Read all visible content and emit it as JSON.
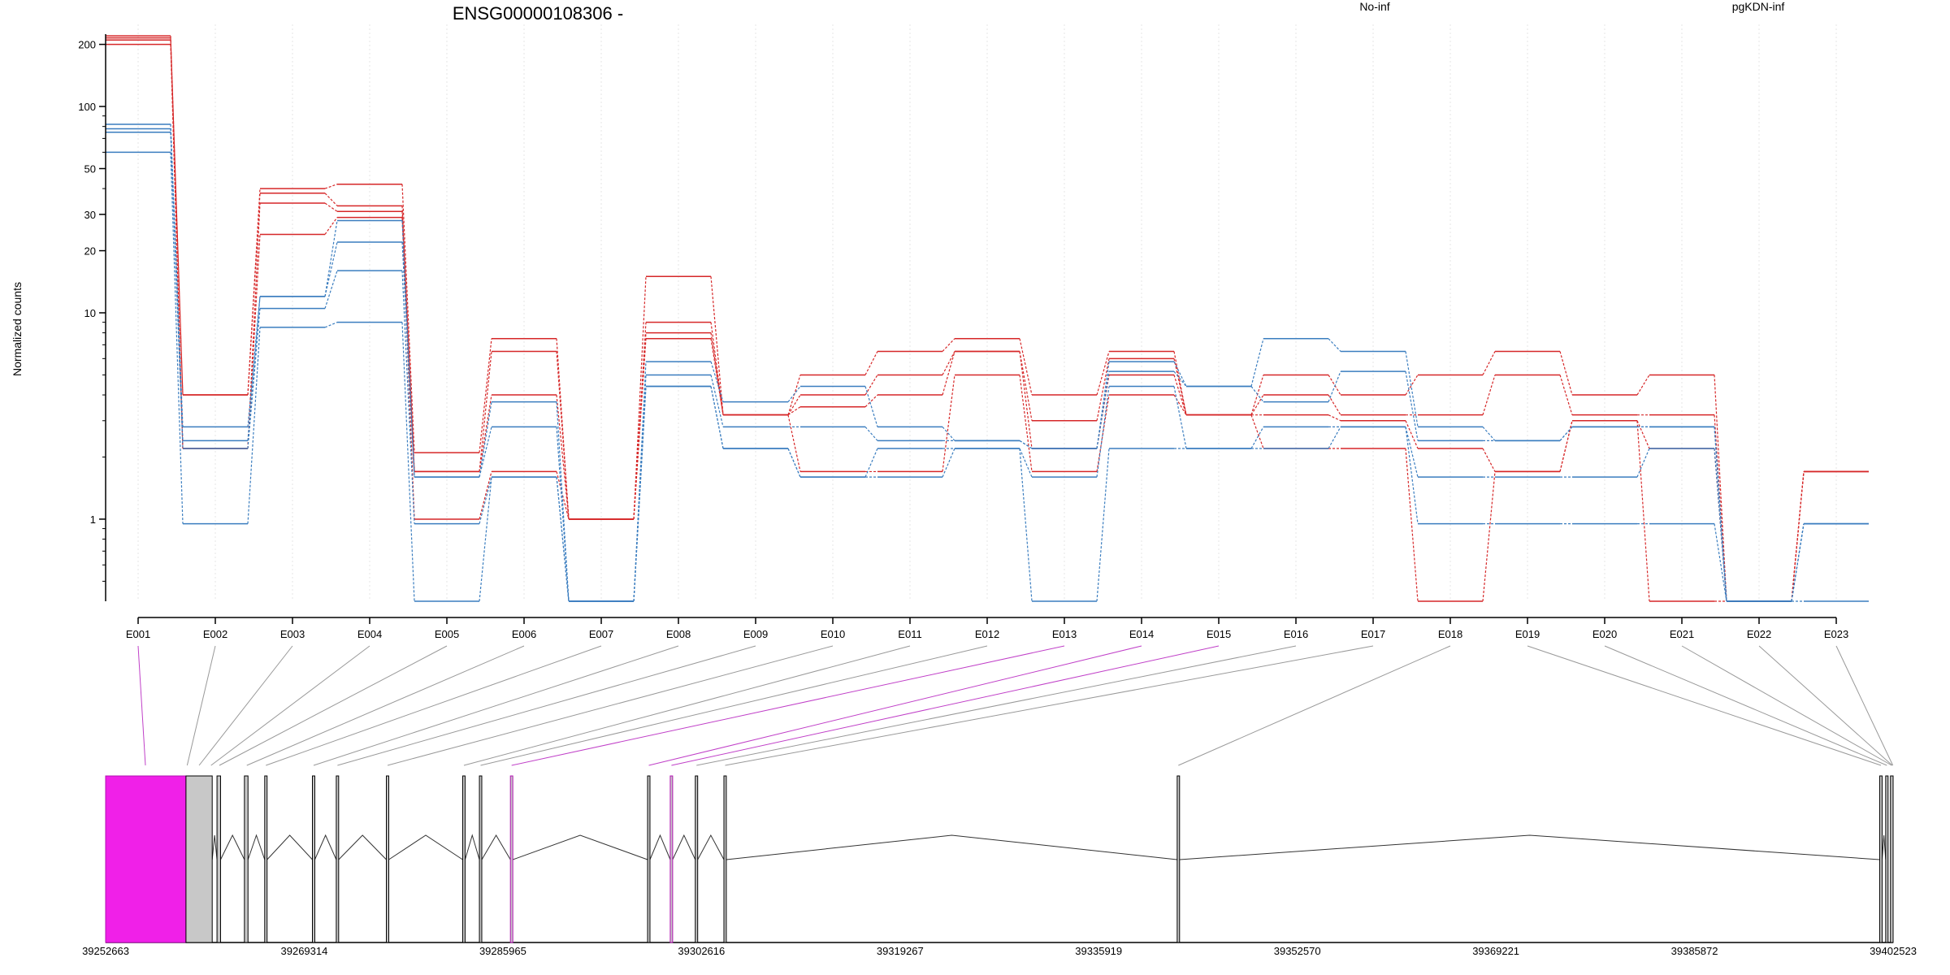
{
  "chart_data": {
    "type": "line",
    "title": "ENSG00000108306 -",
    "ylabel": "Normalized counts",
    "y_scale": "log",
    "ylim": [
      0.4,
      250
    ],
    "yticks": [
      1,
      10,
      20,
      30,
      50,
      100,
      200
    ],
    "categories": [
      "E001",
      "E002",
      "E003",
      "E004",
      "E005",
      "E006",
      "E007",
      "E008",
      "E009",
      "E010",
      "E011",
      "E012",
      "E013",
      "E014",
      "E015",
      "E016",
      "E017",
      "E018",
      "E019",
      "E020",
      "E021",
      "E022",
      "E023"
    ],
    "legend": [
      {
        "name": "No-inf",
        "color": "#d62728"
      },
      {
        "name": "pgKDN-inf",
        "color": "#3a7dbf"
      }
    ],
    "series": [
      {
        "group": "No-inf",
        "color": "#d62728",
        "values": [
          220,
          4,
          40,
          42,
          2.1,
          7.5,
          1,
          15,
          3.2,
          5,
          6.5,
          7.5,
          4,
          6.5,
          3.2,
          5,
          4,
          5,
          6.5,
          4,
          5,
          0.4,
          1.7
        ]
      },
      {
        "group": "No-inf",
        "color": "#d62728",
        "values": [
          215,
          4,
          38,
          33,
          1.7,
          6.5,
          1,
          9,
          3.2,
          4,
          5,
          6.5,
          3,
          6,
          3.2,
          4,
          3.2,
          3.2,
          5,
          3.2,
          3.2,
          0.4,
          1.7
        ]
      },
      {
        "group": "No-inf",
        "color": "#d62728",
        "values": [
          210,
          2.2,
          34,
          31,
          1.7,
          4,
          1,
          8,
          3.2,
          3.5,
          4,
          6.5,
          2.2,
          5,
          3.2,
          3.2,
          3,
          2.2,
          1.7,
          3,
          2.2,
          0.4,
          1.7
        ]
      },
      {
        "group": "No-inf",
        "color": "#d62728",
        "values": [
          200,
          2.2,
          24,
          29,
          1,
          1.7,
          1,
          7.5,
          3.2,
          1.7,
          1.7,
          5,
          1.7,
          4,
          3.2,
          2.2,
          2.2,
          0.4,
          1.7,
          3,
          0.4,
          0.4,
          1.7
        ]
      },
      {
        "group": "pgKDN-inf",
        "color": "#3a7dbf",
        "values": [
          82,
          2.8,
          12,
          28,
          1.6,
          3.7,
          0.4,
          5.8,
          3.7,
          4.4,
          2.8,
          2.4,
          2.2,
          5.8,
          4.4,
          7.5,
          6.5,
          2.8,
          2.4,
          2.8,
          2.8,
          0.4,
          0.95
        ]
      },
      {
        "group": "pgKDN-inf",
        "color": "#3a7dbf",
        "values": [
          78,
          2.4,
          12,
          22,
          1.6,
          2.8,
          0.4,
          5,
          2.8,
          2.8,
          2.4,
          2.4,
          2.2,
          5.2,
          4.4,
          3.7,
          5.2,
          2.4,
          2.4,
          2.8,
          2.8,
          0.4,
          0.95
        ]
      },
      {
        "group": "pgKDN-inf",
        "color": "#3a7dbf",
        "values": [
          75,
          2.2,
          10.5,
          16,
          0.95,
          1.6,
          0.4,
          4.4,
          2.2,
          1.6,
          2.2,
          2.2,
          1.6,
          4.4,
          2.2,
          2.8,
          2.8,
          1.6,
          1.6,
          1.6,
          2.2,
          0.4,
          0.95
        ]
      },
      {
        "group": "pgKDN-inf",
        "color": "#3a7dbf",
        "values": [
          60,
          0.95,
          8.5,
          9,
          0.4,
          1.6,
          0.4,
          4.4,
          2.2,
          1.6,
          1.6,
          2.2,
          0.4,
          2.2,
          2.2,
          2.2,
          2.8,
          0.95,
          0.95,
          0.95,
          0.95,
          0.4,
          0.4
        ]
      }
    ],
    "gene_model": {
      "coordinate_labels": [
        "39252663",
        "39269314",
        "39285965",
        "39302616",
        "39319267",
        "39335919",
        "39352570",
        "39369221",
        "39385872",
        "39402523"
      ],
      "range": [
        39252663,
        39402523
      ],
      "exons": [
        {
          "start": 39252663,
          "end": 39259400,
          "fill": "#f020e8",
          "highlight": true
        },
        {
          "start": 39259400,
          "end": 39261600,
          "fill": "#c8c8c8",
          "highlight": false
        },
        {
          "start": 39262000,
          "end": 39262300,
          "fill": "#c8c8c8",
          "highlight": false
        },
        {
          "start": 39264300,
          "end": 39264600,
          "fill": "#c8c8c8",
          "highlight": false
        },
        {
          "start": 39266000,
          "end": 39266200,
          "fill": "#c8c8c8",
          "highlight": false
        },
        {
          "start": 39270000,
          "end": 39270200,
          "fill": "#c8c8c8",
          "highlight": false
        },
        {
          "start": 39272000,
          "end": 39272200,
          "fill": "#c8c8c8",
          "highlight": false
        },
        {
          "start": 39276200,
          "end": 39276400,
          "fill": "#c8c8c8",
          "highlight": false
        },
        {
          "start": 39282600,
          "end": 39282800,
          "fill": "#c8c8c8",
          "highlight": false
        },
        {
          "start": 39284000,
          "end": 39284200,
          "fill": "#c8c8c8",
          "highlight": false
        },
        {
          "start": 39286600,
          "end": 39286800,
          "fill": "#c8c8c8",
          "highlight": true
        },
        {
          "start": 39298100,
          "end": 39298300,
          "fill": "#c8c8c8",
          "highlight": false
        },
        {
          "start": 39300000,
          "end": 39300200,
          "fill": "#c8c8c8",
          "highlight": true
        },
        {
          "start": 39302100,
          "end": 39302300,
          "fill": "#c8c8c8",
          "highlight": false
        },
        {
          "start": 39304500,
          "end": 39304700,
          "fill": "#c8c8c8",
          "highlight": false
        },
        {
          "start": 39342500,
          "end": 39342700,
          "fill": "#c8c8c8",
          "highlight": false
        },
        {
          "start": 39401400,
          "end": 39401600,
          "fill": "#c8c8c8",
          "highlight": false
        },
        {
          "start": 39401900,
          "end": 39402100,
          "fill": "#c8c8c8",
          "highlight": false
        },
        {
          "start": 39402300,
          "end": 39402523,
          "fill": "#c8c8c8",
          "highlight": false
        }
      ],
      "exon_links": [
        {
          "exon": "E001",
          "pos": 39256000,
          "highlight": true
        },
        {
          "exon": "E002",
          "pos": 39259500,
          "highlight": false
        },
        {
          "exon": "E003",
          "pos": 39260500,
          "highlight": false
        },
        {
          "exon": "E004",
          "pos": 39261500,
          "highlight": false
        },
        {
          "exon": "E005",
          "pos": 39262200,
          "highlight": false
        },
        {
          "exon": "E006",
          "pos": 39264500,
          "highlight": false
        },
        {
          "exon": "E007",
          "pos": 39266100,
          "highlight": false
        },
        {
          "exon": "E008",
          "pos": 39270100,
          "highlight": false
        },
        {
          "exon": "E009",
          "pos": 39272100,
          "highlight": false
        },
        {
          "exon": "E010",
          "pos": 39276300,
          "highlight": false
        },
        {
          "exon": "E011",
          "pos": 39282700,
          "highlight": false
        },
        {
          "exon": "E012",
          "pos": 39284100,
          "highlight": false
        },
        {
          "exon": "E013",
          "pos": 39286700,
          "highlight": true
        },
        {
          "exon": "E014",
          "pos": 39298200,
          "highlight": true
        },
        {
          "exon": "E015",
          "pos": 39300100,
          "highlight": true
        },
        {
          "exon": "E016",
          "pos": 39302200,
          "highlight": false
        },
        {
          "exon": "E017",
          "pos": 39304600,
          "highlight": false
        },
        {
          "exon": "E018",
          "pos": 39342600,
          "highlight": false
        },
        {
          "exon": "E019",
          "pos": 39401500,
          "highlight": false
        },
        {
          "exon": "E020",
          "pos": 39402000,
          "highlight": false
        },
        {
          "exon": "E021",
          "pos": 39402400,
          "highlight": false
        },
        {
          "exon": "E022",
          "pos": 39402450,
          "highlight": false
        },
        {
          "exon": "E023",
          "pos": 39402500,
          "highlight": false
        }
      ]
    }
  }
}
